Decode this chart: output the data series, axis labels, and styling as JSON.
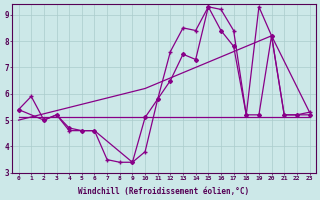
{
  "bg_color": "#cce8e8",
  "grid_color": "#aacccc",
  "line_color": "#880088",
  "xlim": [
    -0.5,
    23.5
  ],
  "ylim": [
    3,
    9.4
  ],
  "xlabel": "Windchill (Refroidissement éolien,°C)",
  "xticks": [
    0,
    1,
    2,
    3,
    4,
    5,
    6,
    7,
    8,
    9,
    10,
    11,
    12,
    13,
    14,
    15,
    16,
    17,
    18,
    19,
    20,
    21,
    22,
    23
  ],
  "yticks": [
    3,
    4,
    5,
    6,
    7,
    8,
    9
  ],
  "series1_x": [
    0,
    1,
    2,
    3,
    4,
    5,
    6,
    7,
    8,
    9,
    10,
    11,
    12,
    13,
    14,
    15,
    16,
    17,
    18,
    19,
    20,
    21,
    22,
    23
  ],
  "series1_y": [
    5.4,
    5.9,
    5.0,
    5.2,
    4.6,
    4.6,
    4.6,
    3.5,
    3.4,
    3.4,
    3.8,
    5.8,
    7.6,
    8.5,
    8.4,
    9.3,
    9.2,
    8.4,
    5.2,
    9.3,
    8.2,
    5.2,
    5.2,
    5.3
  ],
  "series2_x": [
    0,
    2,
    3,
    4,
    5,
    6,
    9,
    10,
    11,
    12,
    13,
    14,
    15,
    16,
    17,
    18,
    19,
    20,
    21,
    22,
    23
  ],
  "series2_y": [
    5.4,
    5.0,
    5.2,
    4.7,
    4.6,
    4.6,
    3.4,
    5.1,
    5.8,
    6.5,
    7.5,
    7.3,
    9.3,
    8.4,
    7.8,
    5.2,
    5.2,
    8.2,
    5.2,
    5.2,
    5.2
  ],
  "series3_x": [
    0,
    10,
    23
  ],
  "series3_y": [
    5.1,
    5.1,
    5.1
  ],
  "series4_x": [
    0,
    10,
    20,
    23
  ],
  "series4_y": [
    5.0,
    6.2,
    8.2,
    5.3
  ]
}
